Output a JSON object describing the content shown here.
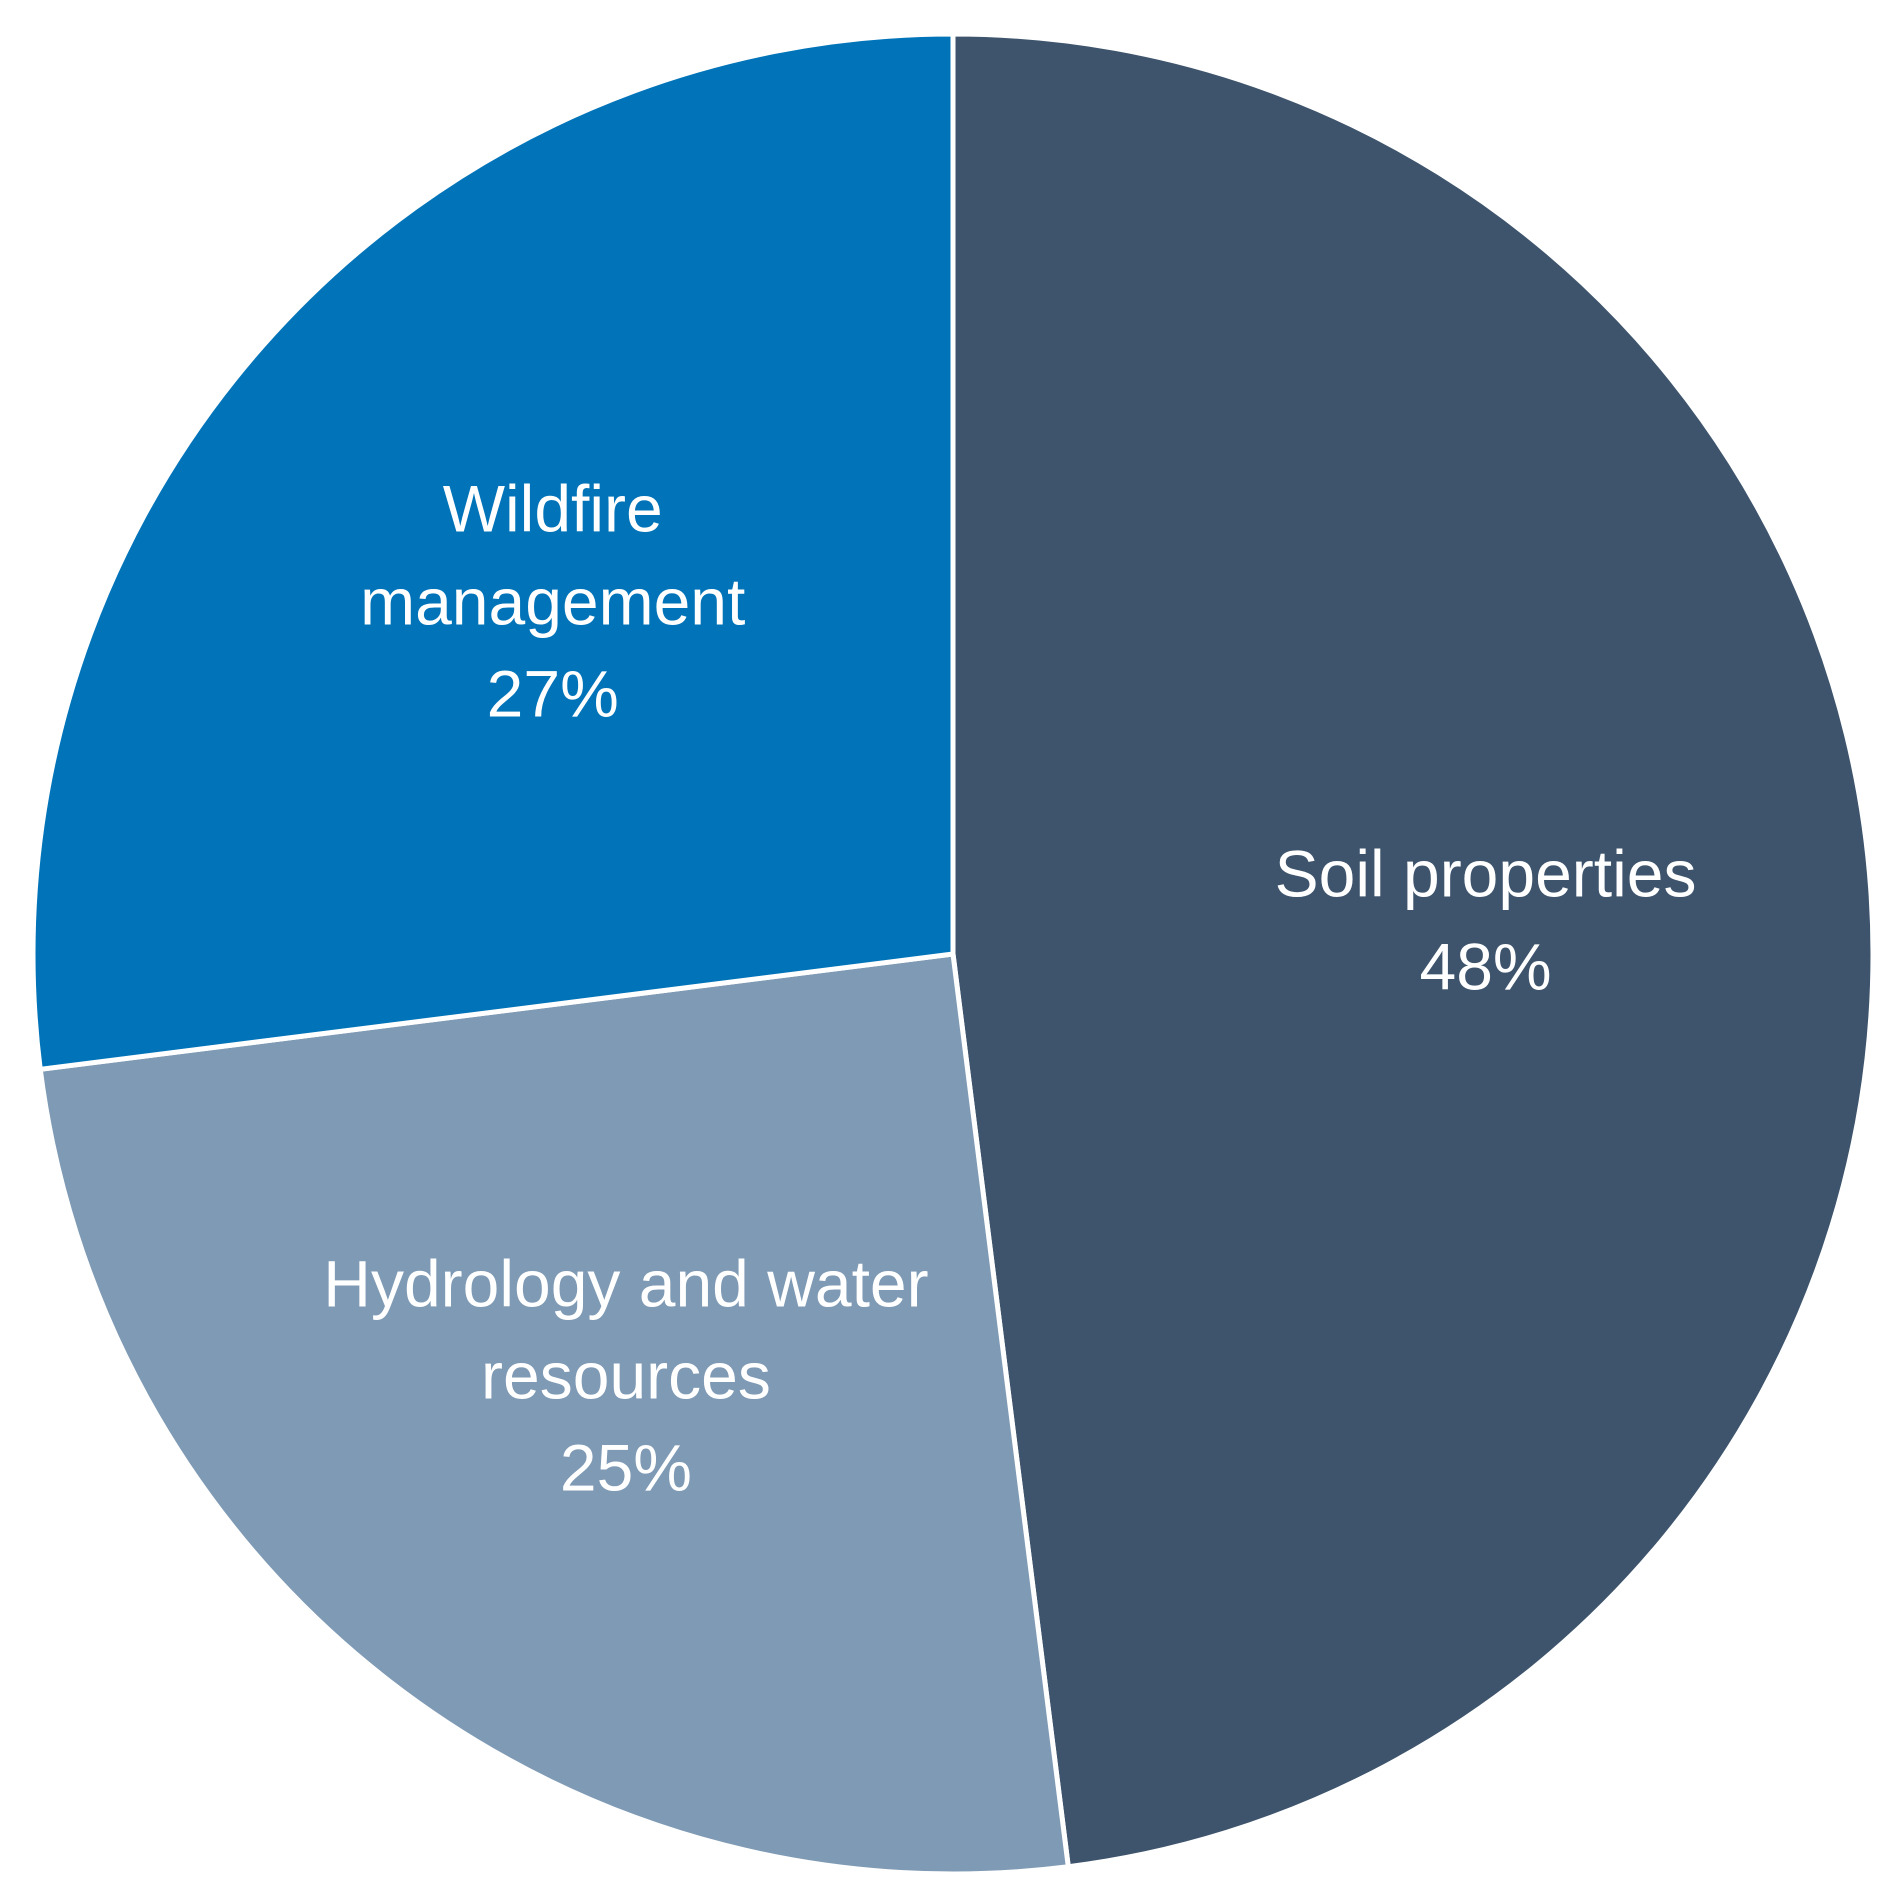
{
  "chart_data": {
    "type": "pie",
    "categories": [
      "Soil properties",
      "Hydrology and water resources",
      "Wildfire management"
    ],
    "values": [
      48,
      25,
      27
    ],
    "value_labels": [
      "48%",
      "25%",
      "27%"
    ],
    "colors": [
      "#3d546c",
      "#7f9ab4",
      "#0174b9"
    ]
  }
}
